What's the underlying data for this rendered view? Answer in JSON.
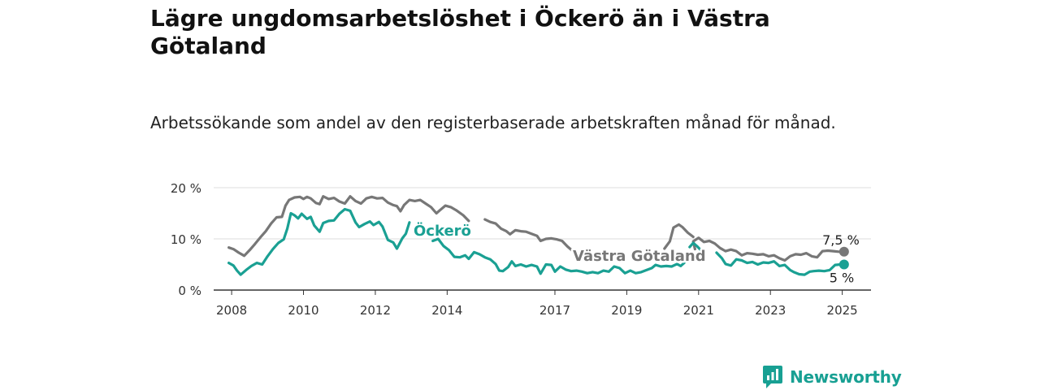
{
  "header": {
    "title": "Lägre ungdomsarbetslöshet i Öckerö än i Västra Götaland",
    "subtitle": "Arbetssökande som andel av den registerbaserade arbetskraften månad för månad."
  },
  "brand": {
    "name": "Newsworthy",
    "color": "#18a093"
  },
  "chart_data": {
    "type": "line",
    "ylim": [
      0,
      20
    ],
    "y_ticks": [
      {
        "value": 0,
        "label": "0 %"
      },
      {
        "value": 10,
        "label": "10 %"
      },
      {
        "value": 20,
        "label": "20 %"
      }
    ],
    "xlim": [
      2007.5,
      2025.8
    ],
    "x_ticks": [
      {
        "value": 2008,
        "label": "2008"
      },
      {
        "value": 2010,
        "label": "2010"
      },
      {
        "value": 2012,
        "label": "2012"
      },
      {
        "value": 2014,
        "label": "2014"
      },
      {
        "value": 2017,
        "label": "2017"
      },
      {
        "value": 2019,
        "label": "2019"
      },
      {
        "value": 2021,
        "label": "2021"
      },
      {
        "value": 2023,
        "label": "2023"
      },
      {
        "value": 2025,
        "label": "2025"
      }
    ],
    "grid": true,
    "series": [
      {
        "name": "Västra Götaland",
        "color": "#777777",
        "end_label": "7,5 %",
        "end_value": 7.5,
        "points": [
          [
            2007.92,
            8.3
          ],
          [
            2008.05,
            8.0
          ],
          [
            2008.2,
            7.3
          ],
          [
            2008.35,
            6.7
          ],
          [
            2008.5,
            7.8
          ],
          [
            2008.65,
            9.0
          ],
          [
            2008.8,
            10.3
          ],
          [
            2008.95,
            11.5
          ],
          [
            2009.1,
            13.0
          ],
          [
            2009.25,
            14.2
          ],
          [
            2009.4,
            14.3
          ],
          [
            2009.5,
            16.5
          ],
          [
            2009.6,
            17.6
          ],
          [
            2009.75,
            18.1
          ],
          [
            2009.9,
            18.2
          ],
          [
            2010.0,
            17.8
          ],
          [
            2010.1,
            18.2
          ],
          [
            2010.2,
            17.9
          ],
          [
            2010.35,
            17.0
          ],
          [
            2010.45,
            16.8
          ],
          [
            2010.55,
            18.3
          ],
          [
            2010.7,
            17.8
          ],
          [
            2010.85,
            18.0
          ],
          [
            2011.0,
            17.3
          ],
          [
            2011.15,
            16.9
          ],
          [
            2011.3,
            18.3
          ],
          [
            2011.45,
            17.4
          ],
          [
            2011.6,
            16.9
          ],
          [
            2011.75,
            17.9
          ],
          [
            2011.9,
            18.2
          ],
          [
            2012.05,
            17.9
          ],
          [
            2012.2,
            18.0
          ],
          [
            2012.35,
            17.1
          ],
          [
            2012.5,
            16.6
          ],
          [
            2012.6,
            16.4
          ],
          [
            2012.7,
            15.4
          ],
          [
            2012.8,
            16.6
          ],
          [
            2012.95,
            17.6
          ],
          [
            2013.1,
            17.4
          ],
          [
            2013.25,
            17.6
          ],
          [
            2013.4,
            16.9
          ],
          [
            2013.55,
            16.2
          ],
          [
            2013.7,
            15.0
          ],
          [
            2013.8,
            15.6
          ],
          [
            2013.95,
            16.5
          ],
          [
            2014.1,
            16.2
          ],
          [
            2014.25,
            15.6
          ],
          [
            2014.45,
            14.6
          ],
          [
            2014.6,
            13.5
          ],
          [
            2014.75,
            null
          ],
          [
            2015.0,
            null
          ],
          [
            2015.05,
            13.8
          ],
          [
            2015.2,
            13.3
          ],
          [
            2015.35,
            13.0
          ],
          [
            2015.5,
            12.0
          ],
          [
            2015.65,
            11.5
          ],
          [
            2015.75,
            10.9
          ],
          [
            2015.9,
            11.7
          ],
          [
            2016.05,
            11.5
          ],
          [
            2016.2,
            11.4
          ],
          [
            2016.35,
            11.0
          ],
          [
            2016.5,
            10.6
          ],
          [
            2016.6,
            9.6
          ],
          [
            2016.75,
            10.0
          ],
          [
            2016.9,
            10.1
          ],
          [
            2017.05,
            9.9
          ],
          [
            2017.2,
            9.6
          ],
          [
            2017.35,
            8.5
          ],
          [
            2017.5,
            7.6
          ],
          [
            2017.6,
            null
          ],
          [
            2020.8,
            null
          ],
          [
            2020.9,
            8.0
          ],
          [
            2020.85,
            9.5
          ],
          [
            2021.0,
            10.2
          ],
          [
            2021.15,
            9.4
          ],
          [
            2021.3,
            9.6
          ],
          [
            2021.45,
            9.1
          ],
          [
            2021.6,
            8.2
          ],
          [
            2021.75,
            7.6
          ],
          [
            2021.9,
            7.9
          ],
          [
            2022.05,
            7.6
          ],
          [
            2022.2,
            6.8
          ],
          [
            2022.35,
            7.2
          ],
          [
            2022.5,
            7.1
          ],
          [
            2022.65,
            6.9
          ],
          [
            2022.8,
            7.0
          ],
          [
            2022.95,
            6.6
          ],
          [
            2023.1,
            6.8
          ],
          [
            2023.25,
            6.2
          ],
          [
            2023.4,
            5.8
          ],
          [
            2023.55,
            6.6
          ],
          [
            2023.7,
            7.0
          ],
          [
            2023.85,
            6.9
          ],
          [
            2024.0,
            7.2
          ],
          [
            2024.15,
            6.6
          ],
          [
            2024.3,
            6.4
          ],
          [
            2024.45,
            7.6
          ],
          [
            2024.6,
            7.7
          ],
          [
            2024.75,
            7.6
          ],
          [
            2024.9,
            7.5
          ],
          [
            2025.05,
            7.5
          ]
        ],
        "points_mid": [
          [
            2017.6,
            7.3
          ],
          [
            2017.8,
            null
          ],
          [
            2019.9,
            null
          ],
          [
            2020.05,
            8.1
          ],
          [
            2020.2,
            9.5
          ],
          [
            2020.3,
            12.2
          ],
          [
            2020.45,
            12.8
          ],
          [
            2020.55,
            12.3
          ],
          [
            2020.7,
            11.2
          ],
          [
            2020.85,
            10.4
          ]
        ]
      },
      {
        "name": "Öckerö",
        "color": "#1aa093",
        "end_label": "5 %",
        "end_value": 5.0,
        "points": [
          [
            2007.92,
            5.3
          ],
          [
            2008.05,
            4.8
          ],
          [
            2008.15,
            3.8
          ],
          [
            2008.25,
            3.0
          ],
          [
            2008.4,
            3.9
          ],
          [
            2008.55,
            4.7
          ],
          [
            2008.7,
            5.3
          ],
          [
            2008.85,
            5.0
          ],
          [
            2009.0,
            6.6
          ],
          [
            2009.15,
            8.0
          ],
          [
            2009.3,
            9.2
          ],
          [
            2009.45,
            9.9
          ],
          [
            2009.55,
            12.0
          ],
          [
            2009.65,
            15.0
          ],
          [
            2009.75,
            14.6
          ],
          [
            2009.85,
            14.0
          ],
          [
            2009.95,
            14.9
          ],
          [
            2010.1,
            13.9
          ],
          [
            2010.2,
            14.3
          ],
          [
            2010.3,
            12.6
          ],
          [
            2010.45,
            11.4
          ],
          [
            2010.55,
            13.1
          ],
          [
            2010.7,
            13.5
          ],
          [
            2010.85,
            13.6
          ],
          [
            2011.0,
            14.9
          ],
          [
            2011.15,
            15.8
          ],
          [
            2011.3,
            15.5
          ],
          [
            2011.45,
            13.2
          ],
          [
            2011.55,
            12.3
          ],
          [
            2011.7,
            12.9
          ],
          [
            2011.85,
            13.4
          ],
          [
            2011.95,
            12.7
          ],
          [
            2012.1,
            13.3
          ],
          [
            2012.2,
            12.4
          ],
          [
            2012.35,
            9.8
          ],
          [
            2012.5,
            9.3
          ],
          [
            2012.6,
            8.1
          ],
          [
            2012.75,
            10.1
          ],
          [
            2012.85,
            11.0
          ],
          [
            2012.95,
            13.2
          ],
          [
            2013.05,
            null
          ],
          [
            2013.5,
            null
          ],
          [
            2013.6,
            9.6
          ],
          [
            2013.75,
            10.0
          ],
          [
            2013.9,
            8.6
          ],
          [
            2014.05,
            7.8
          ],
          [
            2014.2,
            6.5
          ],
          [
            2014.35,
            6.4
          ],
          [
            2014.5,
            6.8
          ],
          [
            2014.6,
            6.1
          ],
          [
            2014.75,
            7.4
          ],
          [
            2014.9,
            7.0
          ],
          [
            2015.05,
            6.4
          ],
          [
            2015.2,
            6.0
          ],
          [
            2015.35,
            5.1
          ],
          [
            2015.45,
            3.8
          ],
          [
            2015.55,
            3.7
          ],
          [
            2015.7,
            4.5
          ],
          [
            2015.8,
            5.6
          ],
          [
            2015.9,
            4.7
          ],
          [
            2016.05,
            5.0
          ],
          [
            2016.2,
            4.6
          ],
          [
            2016.35,
            4.9
          ],
          [
            2016.5,
            4.6
          ],
          [
            2016.6,
            3.2
          ],
          [
            2016.75,
            5.0
          ],
          [
            2016.9,
            4.9
          ],
          [
            2017.0,
            3.6
          ],
          [
            2017.15,
            4.6
          ],
          [
            2017.3,
            4.0
          ],
          [
            2017.45,
            3.7
          ],
          [
            2017.6,
            3.8
          ],
          [
            2017.75,
            3.6
          ],
          [
            2017.9,
            3.3
          ],
          [
            2018.05,
            3.5
          ],
          [
            2018.2,
            3.3
          ],
          [
            2018.35,
            3.8
          ],
          [
            2018.5,
            3.6
          ],
          [
            2018.65,
            4.6
          ],
          [
            2018.8,
            4.3
          ],
          [
            2018.95,
            3.3
          ],
          [
            2019.1,
            3.8
          ],
          [
            2019.25,
            3.3
          ],
          [
            2019.4,
            3.5
          ],
          [
            2019.55,
            3.9
          ],
          [
            2019.7,
            4.3
          ],
          [
            2019.8,
            4.9
          ],
          [
            2019.95,
            4.6
          ],
          [
            2020.1,
            4.7
          ],
          [
            2020.25,
            4.6
          ],
          [
            2020.4,
            5.1
          ],
          [
            2020.5,
            4.7
          ],
          [
            2020.6,
            5.3
          ],
          [
            2020.7,
            null
          ],
          [
            2021.45,
            null
          ],
          [
            2021.5,
            7.3
          ],
          [
            2021.65,
            6.2
          ],
          [
            2021.75,
            5.1
          ],
          [
            2021.9,
            4.8
          ],
          [
            2022.05,
            6.0
          ],
          [
            2022.2,
            5.8
          ],
          [
            2022.35,
            5.3
          ],
          [
            2022.5,
            5.5
          ],
          [
            2022.65,
            5.0
          ],
          [
            2022.8,
            5.4
          ],
          [
            2022.95,
            5.3
          ],
          [
            2023.1,
            5.6
          ],
          [
            2023.25,
            4.7
          ],
          [
            2023.4,
            4.9
          ],
          [
            2023.55,
            3.9
          ],
          [
            2023.65,
            3.5
          ],
          [
            2023.8,
            3.1
          ],
          [
            2023.95,
            3.0
          ],
          [
            2024.1,
            3.6
          ],
          [
            2024.2,
            3.7
          ],
          [
            2024.35,
            3.8
          ],
          [
            2024.5,
            3.7
          ],
          [
            2024.65,
            3.9
          ],
          [
            2024.8,
            4.9
          ],
          [
            2024.95,
            5.0
          ],
          [
            2025.05,
            5.0
          ]
        ],
        "points_mid": [
          [
            2020.75,
            8.4
          ],
          [
            2020.85,
            9.2
          ],
          [
            2020.95,
            8.6
          ],
          [
            2021.05,
            7.9
          ]
        ]
      }
    ],
    "annotations": [
      {
        "series": 0,
        "text": "Västra Götaland"
      },
      {
        "series": 1,
        "text": "Öckerö"
      }
    ]
  }
}
